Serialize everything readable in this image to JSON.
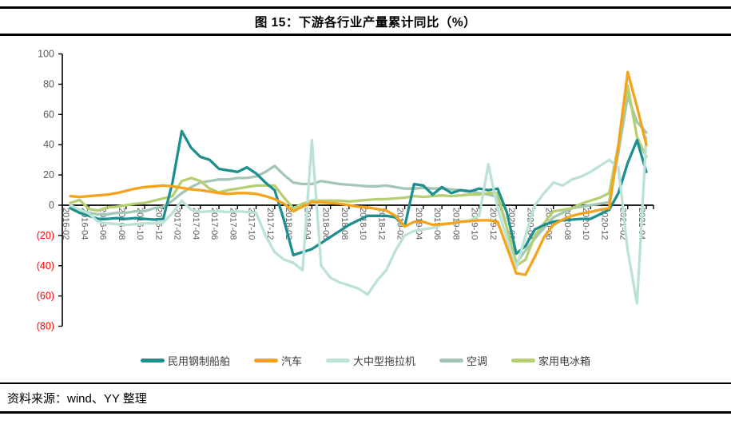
{
  "title": "图 15：下游各行业产量累计同比（%）",
  "source": "资料来源：wind、YY 整理",
  "chart_data": {
    "type": "line",
    "title": "图 15：下游各行业产量累计同比（%）",
    "x_start": "2016-02",
    "x_end": "2021-04",
    "x_frequency": "monthly (labels every 2 months)",
    "x_labels": [
      "2016-02",
      "2016-04",
      "2016-06",
      "2016-08",
      "2016-10",
      "2016-12",
      "2017-02",
      "2017-04",
      "2017-06",
      "2017-08",
      "2017-10",
      "2017-12",
      "2018-02",
      "2018-04",
      "2018-06",
      "2018-08",
      "2018-10",
      "2018-12",
      "2019-02",
      "2019-04",
      "2019-06",
      "2019-08",
      "2019-10",
      "2019-12",
      "2020-02",
      "2020-04",
      "2020-06",
      "2020-08",
      "2020-10",
      "2020-12",
      "2021-02",
      "2021-04"
    ],
    "points_per_label": 2,
    "ylim": [
      -80,
      100
    ],
    "y_ticks": [
      100,
      80,
      60,
      40,
      20,
      0,
      -20,
      -40,
      -60,
      -80
    ],
    "grid": false,
    "legend_position": "bottom",
    "axis_color": "#000000",
    "tick_label_color": "#595959",
    "negative_tick_color": "#FF0000",
    "series": [
      {
        "name": "民用钢制船舶",
        "color": "#1E8F8F",
        "values": [
          -2,
          -5,
          -7,
          -9,
          -9,
          -8.5,
          -9,
          -8.5,
          -9,
          -9.5,
          -9,
          15,
          49,
          38,
          32,
          30,
          24,
          23,
          22,
          25,
          21,
          15,
          10,
          -10,
          -33,
          -31,
          -29,
          -25,
          -21,
          -17,
          -13,
          -10,
          -7,
          -7,
          -7,
          -8,
          -14,
          14,
          13,
          7,
          12,
          8,
          10,
          9,
          11,
          10,
          11,
          -5,
          -32,
          -27,
          -16,
          -13,
          -11,
          -10,
          -9.5,
          -9,
          -9,
          -6,
          -3,
          8,
          28,
          43,
          22
        ]
      },
      {
        "name": "汽车",
        "color": "#F5A31A",
        "values": [
          6,
          5.5,
          6,
          6.5,
          7,
          8,
          9.5,
          11,
          12,
          12.5,
          13,
          12.5,
          11.5,
          10.5,
          10,
          9,
          8,
          7.5,
          8,
          8,
          7.5,
          6,
          4,
          1,
          -4,
          -1,
          2,
          2,
          1.5,
          1,
          0,
          -1,
          -1.5,
          -2.5,
          -3.5,
          -7,
          -14,
          -11,
          -11,
          -13,
          -12.5,
          -12,
          -11,
          -10.5,
          -10,
          -10,
          -11,
          -28,
          -45,
          -46,
          -34,
          -21,
          -13,
          -9.5,
          -7,
          -5.5,
          -4.5,
          -3,
          -2,
          40,
          88,
          65,
          40
        ]
      },
      {
        "name": "大中型拖拉机",
        "color": "#BCE2D7",
        "values": [
          0,
          -3,
          -5.5,
          -11,
          -12,
          -12.5,
          -13,
          -12.5,
          -12,
          -12,
          -11.5,
          -5,
          3,
          -3,
          -4.5,
          -4,
          -4,
          -4.5,
          -4,
          -4.5,
          -5,
          -20,
          -31,
          -36,
          -38,
          -43,
          43,
          -40,
          -48,
          -51,
          -53,
          -55,
          -59,
          -50,
          -43,
          -30,
          -20,
          -17,
          -16,
          -15,
          -13,
          -12,
          -11,
          -10,
          -7,
          27,
          -2,
          -22,
          -42,
          -20,
          0,
          8,
          15,
          13,
          17,
          19,
          22,
          26,
          30,
          25,
          -30,
          -65,
          45
        ]
      },
      {
        "name": "空调",
        "color": "#A4C6B5",
        "values": [
          -1,
          -3,
          -5,
          -6,
          -6,
          -5,
          -5,
          -4,
          -4,
          -2,
          -1,
          3,
          8,
          12,
          15,
          16,
          17,
          17,
          18,
          18,
          19,
          22,
          26,
          20,
          15,
          14,
          14,
          16,
          15,
          14,
          13.5,
          13,
          12.5,
          12.5,
          13,
          12,
          11,
          11,
          11.5,
          11,
          11,
          10.5,
          10,
          9.5,
          8,
          7,
          5.5,
          -15,
          -38,
          -30,
          -22,
          -15,
          -8,
          -5,
          -2,
          -1,
          0,
          1,
          2,
          35,
          72,
          55,
          48
        ]
      },
      {
        "name": "家用电冰箱",
        "color": "#B6CF72",
        "values": [
          1.5,
          3.5,
          -2.5,
          -3.5,
          -1.5,
          -1,
          0,
          1,
          1.5,
          3,
          4.5,
          6,
          16,
          18,
          16,
          11,
          8.5,
          10,
          11,
          12,
          13,
          13,
          13,
          5,
          -2,
          1,
          3,
          3,
          3,
          3,
          2.5,
          3,
          3.5,
          4,
          4,
          4.5,
          5,
          6,
          5.5,
          6,
          6.5,
          6,
          6.5,
          7,
          7,
          8,
          8,
          -15,
          -40,
          -36,
          -20,
          -12,
          -4,
          -3,
          -2,
          1,
          3,
          5,
          8,
          40,
          79,
          45,
          32
        ]
      }
    ]
  }
}
